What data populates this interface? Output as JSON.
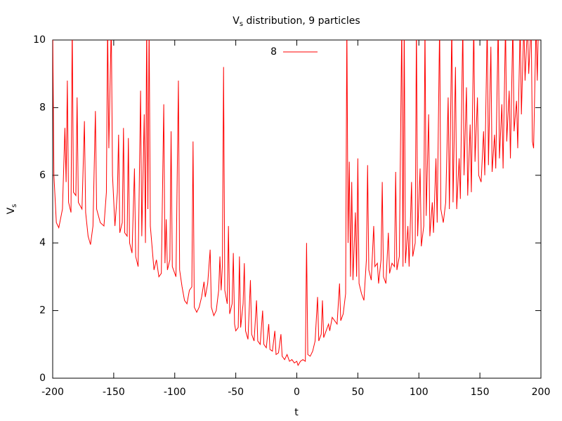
{
  "chart_data": {
    "type": "line",
    "title": [
      "V",
      "s",
      " distribution, 9 particles"
    ],
    "xlabel": "t",
    "ylabel": [
      "V",
      "s"
    ],
    "x": [
      -200,
      -199,
      -197,
      -195,
      -192,
      -190,
      -189,
      -188,
      -187,
      -185,
      -184,
      -183,
      -181,
      -180,
      -179,
      -176,
      -174,
      -173,
      -171,
      -169,
      -167,
      -165,
      -164,
      -161,
      -158,
      -156,
      -155,
      -154,
      -152,
      -151,
      -149,
      -147,
      -146,
      -145,
      -143,
      -142,
      -141,
      -139,
      -138,
      -137,
      -135,
      -133,
      -132,
      -130,
      -128,
      -127,
      -125,
      -124,
      -123,
      -122,
      -121,
      -120,
      -117,
      -115,
      -113,
      -111,
      -109,
      -108,
      -107,
      -106,
      -104,
      -103,
      -102,
      -99,
      -97,
      -96,
      -94,
      -92,
      -90,
      -88,
      -86,
      -85,
      -84,
      -82,
      -80,
      -78,
      -76,
      -75,
      -73,
      -71,
      -70,
      -68,
      -66,
      -64,
      -63,
      -62,
      -61,
      -60,
      -59,
      -57,
      -56,
      -55,
      -53,
      -52,
      -51,
      -50,
      -48,
      -47,
      -46,
      -44,
      -43,
      -42,
      -40,
      -38,
      -37,
      -35,
      -33,
      -32,
      -30,
      -28,
      -27,
      -25,
      -23,
      -22,
      -20,
      -18,
      -17,
      -15,
      -13,
      -12,
      -10,
      -8,
      -6,
      -4,
      -2,
      0,
      1,
      3,
      5,
      7,
      8,
      9,
      11,
      13,
      15,
      17,
      18,
      20,
      21,
      22,
      24,
      26,
      27,
      29,
      31,
      33,
      35,
      36,
      38,
      40,
      41,
      42,
      43,
      44,
      45,
      46,
      48,
      49,
      50,
      51,
      53,
      55,
      57,
      58,
      59,
      61,
      63,
      64,
      66,
      67,
      69,
      70,
      71,
      73,
      75,
      76,
      78,
      80,
      81,
      82,
      84,
      86,
      87,
      88,
      89,
      91,
      92,
      94,
      95,
      97,
      98,
      99,
      101,
      102,
      104,
      105,
      106,
      108,
      109,
      111,
      112,
      114,
      115,
      117,
      118,
      120,
      122,
      124,
      125,
      127,
      128,
      130,
      131,
      133,
      134,
      136,
      137,
      139,
      140,
      142,
      143,
      145,
      146,
      148,
      149,
      151,
      153,
      154,
      156,
      157,
      159,
      160,
      162,
      163,
      165,
      166,
      168,
      169,
      171,
      172,
      174,
      175,
      177,
      178,
      180,
      181,
      183,
      184,
      186,
      187,
      189,
      190,
      192,
      193,
      194,
      196,
      197,
      198,
      200
    ],
    "series": [
      {
        "name": "8",
        "color": "#ff0000",
        "values": [
          10.5,
          6,
          4.6,
          4.45,
          5,
          7.4,
          5.8,
          8.8,
          5.2,
          4.9,
          10.5,
          5.5,
          5.4,
          8.3,
          5.2,
          5,
          7.6,
          4.9,
          4.2,
          3.95,
          4.5,
          7.9,
          5,
          4.6,
          4.5,
          5.5,
          10.5,
          6.8,
          10.5,
          6,
          4.5,
          5.5,
          7.2,
          4.3,
          4.6,
          7.4,
          4.3,
          4.2,
          7.1,
          4,
          3.7,
          6.2,
          3.6,
          3.3,
          8.5,
          4.2,
          7.8,
          4,
          10.5,
          5,
          10.5,
          4.5,
          3.2,
          3.5,
          3,
          3.1,
          8.1,
          3.4,
          4.7,
          3.2,
          3.5,
          7.3,
          3.3,
          3,
          8.8,
          3.2,
          2.7,
          2.3,
          2.2,
          2.6,
          2.7,
          7,
          2.1,
          1.95,
          2.1,
          2.4,
          2.85,
          2.4,
          2.8,
          3.8,
          2.1,
          1.85,
          2,
          2.6,
          3.6,
          2.6,
          3.3,
          9.2,
          2.6,
          2.2,
          4.5,
          1.9,
          2.2,
          3.7,
          1.6,
          1.4,
          1.5,
          3.6,
          1.5,
          2.2,
          3.4,
          1.4,
          1.15,
          2.9,
          1.3,
          1.1,
          2.3,
          1.1,
          1,
          2,
          1,
          0.9,
          1.6,
          0.85,
          0.8,
          1.4,
          0.7,
          0.75,
          1.3,
          0.65,
          0.55,
          0.7,
          0.5,
          0.55,
          0.45,
          0.5,
          0.38,
          0.5,
          0.55,
          0.5,
          4,
          0.7,
          0.65,
          0.8,
          1.1,
          2.4,
          1.1,
          1.3,
          2.3,
          1.2,
          1.4,
          1.6,
          1.4,
          1.8,
          1.7,
          1.6,
          2.8,
          1.7,
          1.9,
          2.5,
          10.5,
          4,
          6.4,
          3,
          5.8,
          2.9,
          4.9,
          3,
          6.5,
          2.8,
          2.5,
          2.3,
          3.5,
          6.3,
          3.2,
          2.9,
          4.5,
          3.3,
          3.4,
          2.8,
          3.5,
          5.8,
          3,
          2.8,
          4.3,
          3.1,
          3.4,
          3.3,
          6.1,
          3.2,
          3.6,
          10.5,
          3.3,
          10.5,
          3.4,
          4.5,
          3.3,
          5.8,
          3.6,
          4,
          10.5,
          4.2,
          6.2,
          3.9,
          4.5,
          10.5,
          4.8,
          7.8,
          4.2,
          5.2,
          4.3,
          6.5,
          4.6,
          10.5,
          5,
          4.6,
          5.2,
          8.3,
          5,
          10.5,
          5.2,
          9.2,
          5,
          6.5,
          5.3,
          10.5,
          6,
          8.6,
          5.4,
          7.5,
          5.5,
          10.5,
          6.4,
          8.3,
          6,
          5.8,
          7.3,
          6,
          10.5,
          6.3,
          9.8,
          6.1,
          7.2,
          6.2,
          10.5,
          6.5,
          8.1,
          6.2,
          10.5,
          7,
          8.5,
          6.5,
          10.5,
          7.3,
          8.2,
          6.8,
          10.5,
          7.8,
          10.5,
          8.8,
          10.5,
          9,
          10.5,
          7,
          6.8,
          10.5,
          8.8,
          10.5,
          10.5
        ]
      }
    ],
    "xlim": [
      -200,
      200
    ],
    "xticks": [
      -200,
      -150,
      -100,
      -50,
      0,
      50,
      100,
      150,
      200
    ],
    "ylim": [
      0,
      10
    ],
    "yticks": [
      0,
      2,
      4,
      6,
      8,
      10
    ],
    "grid": false,
    "legend": "top"
  }
}
